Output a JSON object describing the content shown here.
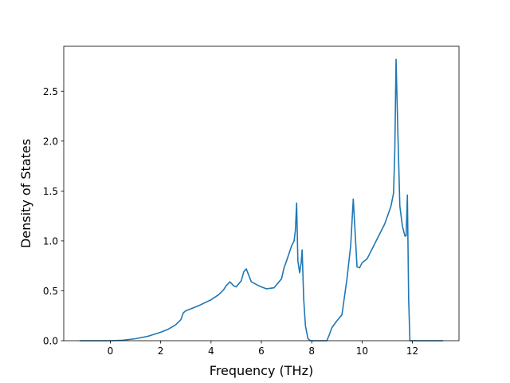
{
  "chart_data": {
    "type": "line",
    "title": "",
    "xlabel": "Frequency (THz)",
    "ylabel": "Density of States",
    "xlim": [
      -1.85,
      13.85
    ],
    "ylim": [
      0.0,
      2.95
    ],
    "xticks": [
      0,
      2,
      4,
      6,
      8,
      10,
      12
    ],
    "yticks": [
      0.0,
      0.5,
      1.0,
      1.5,
      2.0,
      2.5
    ],
    "xtick_labels": [
      "0",
      "2",
      "4",
      "6",
      "8",
      "10",
      "12"
    ],
    "ytick_labels": [
      "0.0",
      "0.5",
      "1.0",
      "1.5",
      "2.0",
      "2.5"
    ],
    "grid": false,
    "legend": "none",
    "series": [
      {
        "color": "#1f77b4",
        "x": [
          -1.2,
          -0.5,
          0.0,
          0.5,
          1.0,
          1.5,
          2.0,
          2.3,
          2.6,
          2.8,
          2.9,
          3.0,
          3.5,
          4.0,
          4.3,
          4.5,
          4.6,
          4.75,
          4.9,
          5.0,
          5.2,
          5.3,
          5.4,
          5.6,
          5.9,
          6.2,
          6.5,
          6.8,
          6.9,
          7.0,
          7.2,
          7.3,
          7.35,
          7.4,
          7.45,
          7.52,
          7.58,
          7.62,
          7.68,
          7.75,
          7.85,
          7.95,
          8.1,
          8.6,
          8.7,
          8.8,
          9.0,
          9.2,
          9.4,
          9.55,
          9.65,
          9.72,
          9.8,
          9.9,
          10.0,
          10.2,
          10.5,
          10.9,
          11.15,
          11.25,
          11.3,
          11.35,
          11.42,
          11.5,
          11.6,
          11.7,
          11.75,
          11.8,
          11.85,
          11.9,
          11.95,
          12.5,
          13.2
        ],
        "y": [
          0.0,
          0.0,
          0.0,
          0.005,
          0.02,
          0.045,
          0.085,
          0.115,
          0.16,
          0.21,
          0.28,
          0.3,
          0.35,
          0.41,
          0.46,
          0.51,
          0.55,
          0.59,
          0.55,
          0.54,
          0.6,
          0.69,
          0.72,
          0.59,
          0.55,
          0.52,
          0.53,
          0.62,
          0.73,
          0.8,
          0.95,
          1.0,
          1.1,
          1.38,
          0.8,
          0.68,
          0.78,
          0.91,
          0.42,
          0.15,
          0.02,
          0.0,
          0.0,
          0.0,
          0.06,
          0.13,
          0.2,
          0.26,
          0.62,
          0.96,
          1.42,
          1.1,
          0.74,
          0.73,
          0.78,
          0.82,
          0.97,
          1.17,
          1.35,
          1.48,
          1.9,
          2.82,
          2.1,
          1.35,
          1.15,
          1.05,
          1.05,
          1.46,
          0.42,
          0.0,
          0.0,
          0.0,
          0.0
        ]
      }
    ]
  }
}
